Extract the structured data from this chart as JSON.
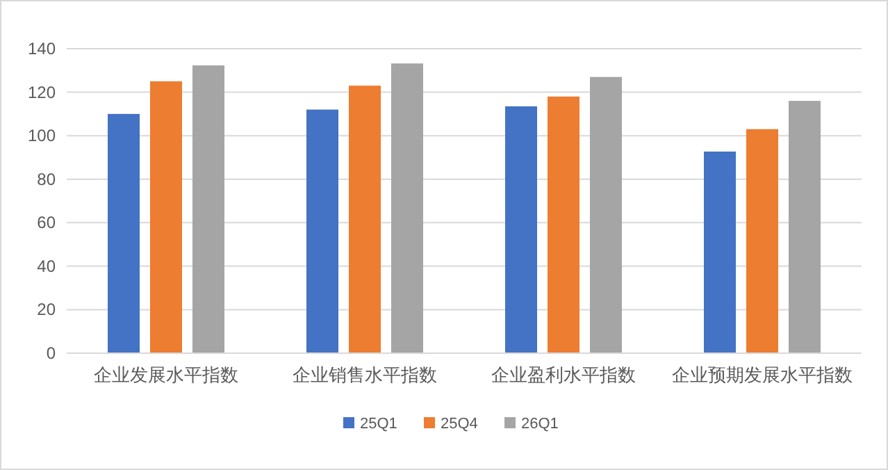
{
  "chart_data": {
    "type": "bar",
    "categories": [
      "企业发展水平指数",
      "企业销售水平指数",
      "企业盈利水平指数",
      "企业预期发展水平指数"
    ],
    "series": [
      {
        "name": "25Q1",
        "color": "#4472c4",
        "values": [
          110,
          112,
          113.5,
          92.7
        ]
      },
      {
        "name": "25Q4",
        "color": "#ed7d31",
        "values": [
          125,
          123,
          118,
          103
        ]
      },
      {
        "name": "26Q1",
        "color": "#a5a5a5",
        "values": [
          132.3,
          133.2,
          127,
          116
        ]
      }
    ],
    "ylim": [
      0,
      140
    ],
    "yticks": [
      0,
      20,
      40,
      60,
      80,
      100,
      120,
      140
    ],
    "grid": "y",
    "legend": "bottom"
  }
}
